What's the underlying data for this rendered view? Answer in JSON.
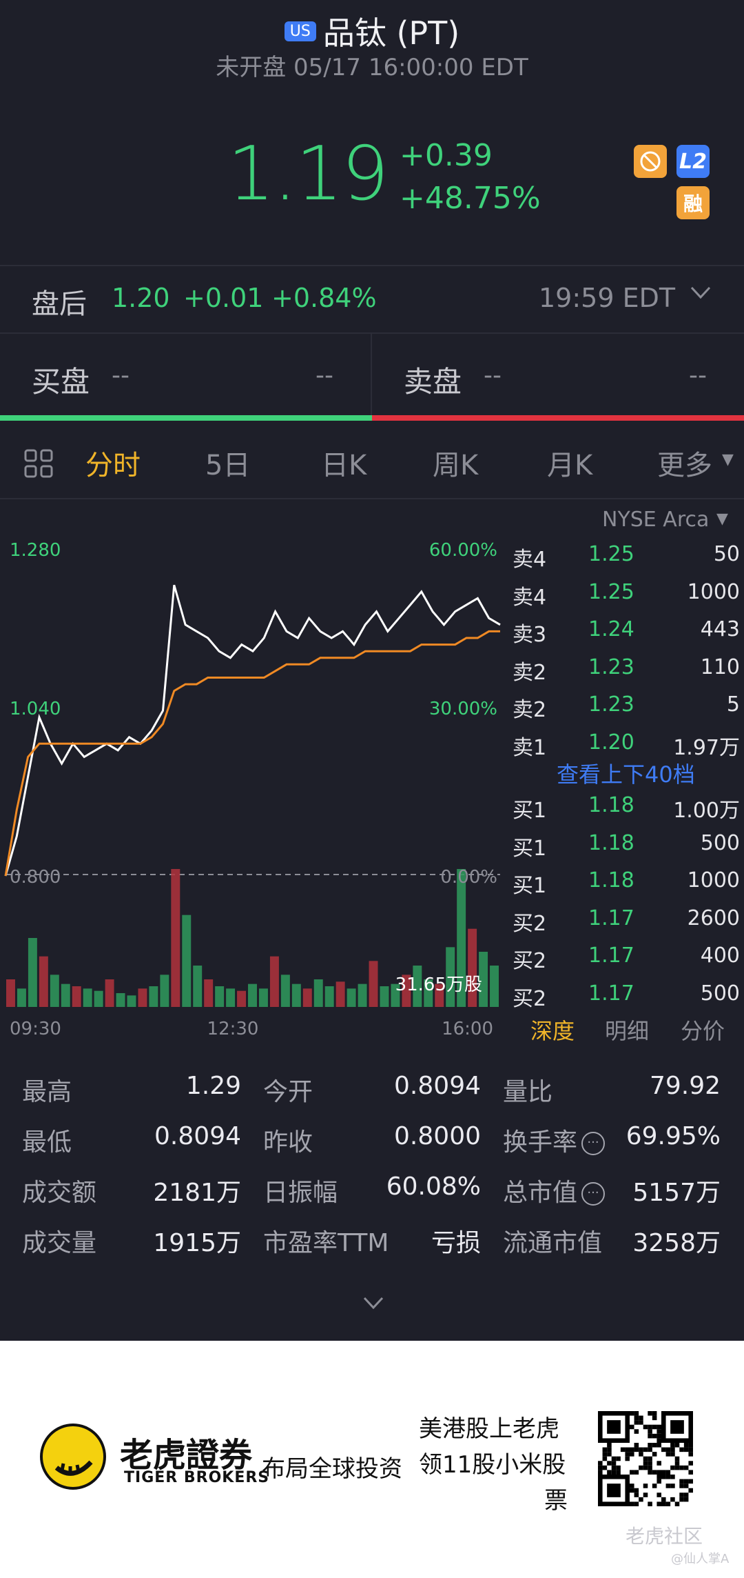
{
  "header": {
    "market_badge": "US",
    "title": "品钛 (PT)",
    "status": "未开盘 05/17 16:00:00 EDT",
    "price": "1.19",
    "change": "+0.39",
    "change_pct": "+48.75%",
    "badges": {
      "l2": "L2",
      "margin": "融",
      "noshort_icon": "no-short-icon"
    }
  },
  "after_hours": {
    "label": "盘后",
    "price": "1.20",
    "change": "+0.01",
    "change_pct": "+0.84%",
    "time": "19:59 EDT"
  },
  "bid_ask": {
    "bid_label": "买盘",
    "bid_price": "--",
    "bid_qty": "--",
    "ask_label": "卖盘",
    "ask_price": "--",
    "ask_qty": "--",
    "bid_color": "#3fd27b",
    "ask_color": "#e2333f"
  },
  "tabs": [
    "分时",
    "5日",
    "日K",
    "周K",
    "月K",
    "更多"
  ],
  "exchange": "NYSE Arca",
  "chart_data": {
    "type": "line",
    "y_labels_left": [
      "1.280",
      "1.040",
      "0.800"
    ],
    "y_labels_right": [
      "60.00%",
      "30.00%",
      "0.00%"
    ],
    "x_labels": [
      "09:30",
      "12:30",
      "16:00"
    ],
    "ylim": [
      0.8,
      1.28
    ],
    "volume_label": "31.65万股",
    "series": [
      {
        "color": "#ffffff",
        "values": [
          0.8,
          0.86,
          0.95,
          1.04,
          1.0,
          0.97,
          1.0,
          0.98,
          0.99,
          1.0,
          0.99,
          1.01,
          1.0,
          1.02,
          1.05,
          1.24,
          1.18,
          1.17,
          1.16,
          1.14,
          1.13,
          1.15,
          1.14,
          1.16,
          1.2,
          1.17,
          1.16,
          1.19,
          1.17,
          1.16,
          1.17,
          1.15,
          1.18,
          1.2,
          1.17,
          1.19,
          1.21,
          1.23,
          1.2,
          1.18,
          1.2,
          1.21,
          1.22,
          1.19,
          1.18
        ],
        "price_x": "minute"
      },
      {
        "color": "#f08a24",
        "values": [
          0.8,
          0.9,
          0.98,
          1.0,
          1.0,
          1.0,
          1.0,
          1.0,
          1.0,
          1.0,
          1.0,
          1.0,
          1.0,
          1.01,
          1.03,
          1.08,
          1.09,
          1.09,
          1.1,
          1.1,
          1.1,
          1.1,
          1.1,
          1.1,
          1.11,
          1.12,
          1.12,
          1.12,
          1.13,
          1.13,
          1.13,
          1.13,
          1.14,
          1.14,
          1.14,
          1.14,
          1.14,
          1.15,
          1.15,
          1.15,
          1.15,
          1.16,
          1.16,
          1.17,
          1.17
        ]
      }
    ],
    "volume": [
      12,
      8,
      30,
      22,
      14,
      10,
      9,
      8,
      7,
      12,
      6,
      5,
      8,
      9,
      14,
      60,
      40,
      18,
      12,
      9,
      8,
      7,
      10,
      8,
      22,
      14,
      10,
      8,
      12,
      9,
      11,
      8,
      10,
      20,
      9,
      10,
      14,
      18,
      12,
      10,
      26,
      60,
      34,
      24,
      18
    ]
  },
  "order_book": {
    "asks": [
      {
        "side": "卖4",
        "price": "1.25",
        "qty": "50"
      },
      {
        "side": "卖4",
        "price": "1.25",
        "qty": "1000"
      },
      {
        "side": "卖3",
        "price": "1.24",
        "qty": "443"
      },
      {
        "side": "卖2",
        "price": "1.23",
        "qty": "110"
      },
      {
        "side": "卖2",
        "price": "1.23",
        "qty": "5"
      },
      {
        "side": "卖1",
        "price": "1.20",
        "qty": "1.97万"
      }
    ],
    "view_more": "查看上下40档",
    "bids": [
      {
        "side": "买1",
        "price": "1.18",
        "qty": "1.00万"
      },
      {
        "side": "买1",
        "price": "1.18",
        "qty": "500"
      },
      {
        "side": "买1",
        "price": "1.18",
        "qty": "1000"
      },
      {
        "side": "买2",
        "price": "1.17",
        "qty": "2600"
      },
      {
        "side": "买2",
        "price": "1.17",
        "qty": "400"
      },
      {
        "side": "买2",
        "price": "1.17",
        "qty": "500"
      }
    ],
    "tabs": [
      "深度",
      "明细",
      "分价"
    ]
  },
  "stats": [
    [
      {
        "label": "最高",
        "value": "1.29"
      },
      {
        "label": "今开",
        "value": "0.8094"
      },
      {
        "label": "量比",
        "value": "79.92"
      }
    ],
    [
      {
        "label": "最低",
        "value": "0.8094"
      },
      {
        "label": "昨收",
        "value": "0.8000"
      },
      {
        "label": "换手率",
        "value": "69.95%",
        "info": "true"
      }
    ],
    [
      {
        "label": "成交额",
        "value": "2181万"
      },
      {
        "label": "日振幅",
        "value": "60.08%"
      },
      {
        "label": "总市值",
        "value": "5157万",
        "info": "true"
      }
    ],
    [
      {
        "label": "成交量",
        "value": "1915万"
      },
      {
        "label": "市盈率TTM",
        "value": "亏损"
      },
      {
        "label": "流通市值",
        "value": "3258万"
      }
    ]
  ],
  "footer": {
    "brand_cn": "老虎證券",
    "brand_en": "TIGER BROKERS",
    "tagline": "布局全球投资",
    "promo_line1": "美港股上老虎",
    "promo_line2": "领11股小米股",
    "promo_line3": "票",
    "watermark": "老虎社区",
    "watermark_user": "@仙人掌A"
  }
}
